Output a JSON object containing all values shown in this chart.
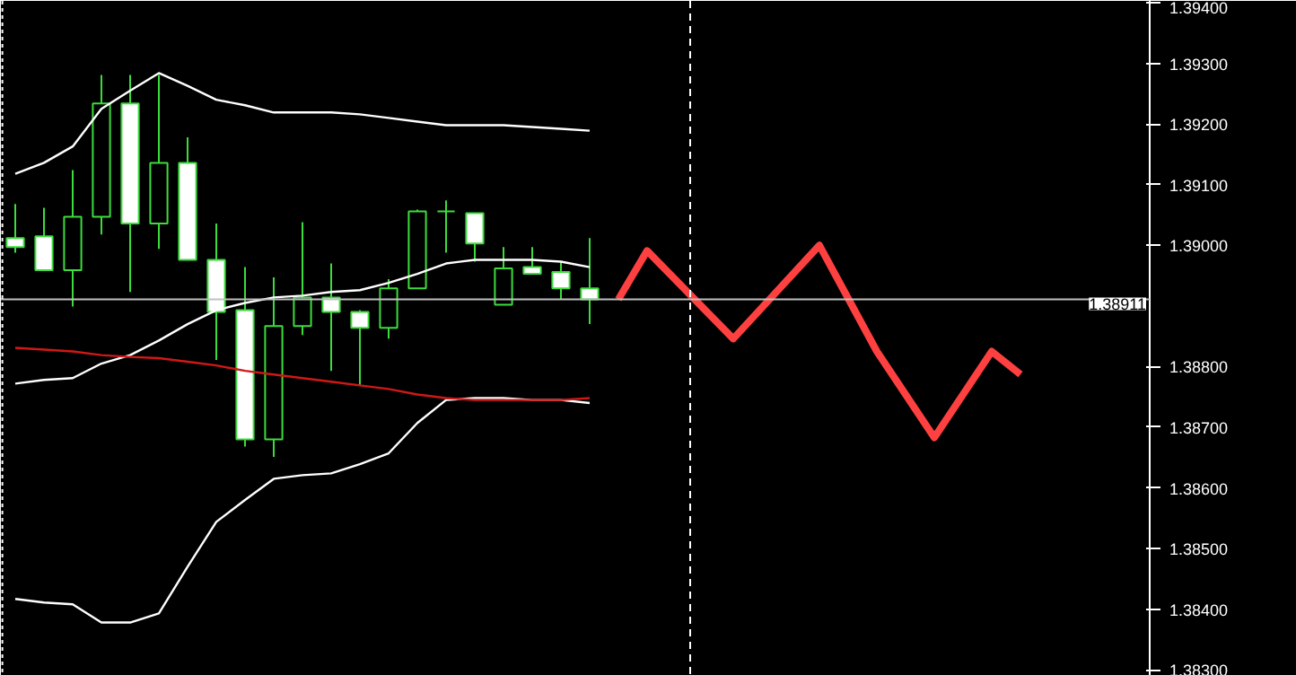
{
  "chart_data": {
    "type": "candlestick",
    "categories": [
      null,
      null,
      null,
      null,
      null,
      null,
      null,
      null,
      null,
      null,
      null,
      null,
      null,
      null,
      null,
      null,
      null,
      null,
      null,
      null,
      null,
      null,
      null,
      null,
      null,
      null,
      null,
      null,
      null,
      null,
      null,
      null,
      null,
      null,
      null,
      null,
      null,
      null,
      null,
      null
    ],
    "series": [
      {
        "type": "line",
        "color": "#ffffff",
        "values": [
          1.39118,
          1.39136,
          1.39163,
          1.39225,
          1.39255,
          1.39284,
          1.39263,
          1.3924,
          1.39231,
          1.39219,
          1.39219,
          1.39219,
          1.39216,
          1.3921,
          1.39204,
          1.39198,
          1.39198,
          1.39198,
          1.39195,
          1.39192,
          1.39189,
          null,
          null,
          null,
          null,
          null,
          null,
          null,
          null,
          null,
          null,
          null,
          null,
          null,
          null,
          null,
          null,
          null,
          null,
          null
        ]
      },
      {
        "type": "line",
        "color": "#ffffff",
        "values": [
          1.38772,
          1.38778,
          1.38781,
          1.38805,
          1.38819,
          1.38843,
          1.3887,
          1.38893,
          1.38905,
          1.38914,
          1.38917,
          1.38923,
          1.38926,
          1.38938,
          1.38953,
          1.3897,
          1.38976,
          1.38976,
          1.38976,
          1.38973,
          1.38964,
          null,
          null,
          null,
          null,
          null,
          null,
          null,
          null,
          null,
          null,
          null,
          null,
          null,
          null,
          null,
          null,
          null,
          null,
          null
        ]
      },
      {
        "type": "line",
        "color": "#ffffff",
        "values": [
          1.38417,
          1.38411,
          1.38408,
          1.38378,
          1.38378,
          1.38393,
          1.3847,
          1.38544,
          1.3858,
          1.38615,
          1.38621,
          1.38624,
          1.38639,
          1.38657,
          1.38707,
          1.38745,
          1.38748,
          1.38748,
          1.38745,
          1.38745,
          1.3874,
          null,
          null,
          null,
          null,
          null,
          null,
          null,
          null,
          null,
          null,
          null,
          null,
          null,
          null,
          null,
          null,
          null,
          null,
          null
        ]
      },
      {
        "type": "line",
        "color": "#d01818",
        "values": [
          1.38831,
          1.38828,
          1.38825,
          1.38819,
          1.38816,
          1.38814,
          1.38808,
          1.38802,
          1.38793,
          1.38787,
          1.38781,
          1.38775,
          1.38769,
          1.38763,
          1.38754,
          1.38748,
          1.38745,
          1.38745,
          1.38745,
          1.38745,
          1.38748,
          null,
          null,
          null,
          null,
          null,
          null,
          null,
          null,
          null,
          null,
          null,
          null,
          null,
          null,
          null,
          null,
          null,
          null,
          null
        ]
      },
      {
        "type": "line",
        "color": "#ff4040",
        "values": [
          null,
          null,
          null,
          null,
          null,
          null,
          null,
          null,
          null,
          null,
          null,
          null,
          null,
          null,
          null,
          null,
          null,
          null,
          null,
          null,
          null,
          1.38911,
          1.38991,
          null,
          null,
          1.38846,
          null,
          null,
          1.39,
          null,
          1.38825,
          null,
          1.38683,
          null,
          1.38825,
          1.38787,
          null,
          null,
          null,
          null
        ]
      },
      {
        "color": "#3cdc3c",
        "ohlc": [
          [
            1.39012,
            1.39068,
            1.38988,
            1.38997
          ],
          [
            1.39015,
            1.39062,
            1.38959,
            1.38959
          ],
          [
            1.38959,
            1.39124,
            1.38899,
            1.39047
          ],
          [
            1.39047,
            1.39281,
            1.39018,
            1.39234
          ],
          [
            1.39234,
            1.39281,
            1.38923,
            1.39036
          ],
          [
            1.39036,
            1.39281,
            1.38994,
            1.39136
          ],
          [
            1.39136,
            1.39178,
            1.38976,
            1.38976
          ],
          [
            1.38976,
            1.39036,
            1.38811,
            1.3889
          ],
          [
            1.38893,
            1.38964,
            1.38668,
            1.3868
          ],
          [
            1.3868,
            1.38947,
            1.38651,
            1.38867
          ],
          [
            1.38867,
            1.39038,
            1.38852,
            1.38914
          ],
          [
            1.38914,
            1.3897,
            1.38793,
            1.3889
          ],
          [
            1.3889,
            1.38893,
            1.38769,
            1.38864
          ],
          [
            1.38864,
            1.38944,
            1.38846,
            1.38929
          ],
          [
            1.38929,
            1.39059,
            1.38929,
            1.39056
          ],
          [
            1.39056,
            1.39074,
            1.38988,
            1.39056
          ],
          [
            1.39053,
            1.39053,
            1.38973,
            1.39003
          ],
          [
            1.38902,
            1.38997,
            1.38902,
            1.38962
          ],
          [
            1.38964,
            1.38997,
            1.38953,
            1.38953
          ],
          [
            1.38956,
            1.38973,
            1.38911,
            1.38929
          ],
          [
            1.38929,
            1.39012,
            1.3887,
            1.38911
          ],
          null,
          null,
          null,
          null,
          null,
          null,
          null,
          null,
          null,
          null,
          null,
          null,
          null,
          null,
          null,
          null,
          null,
          null,
          null
        ]
      }
    ],
    "ylim": [
      1.3829,
      1.39403
    ],
    "yticks": [
      {
        "value": 1.383,
        "label": "1.38300"
      },
      {
        "value": 1.384,
        "label": "1.38400"
      },
      {
        "value": 1.385,
        "label": "1.38500"
      },
      {
        "value": 1.386,
        "label": "1.38600"
      },
      {
        "value": 1.387,
        "label": "1.38700"
      },
      {
        "value": 1.388,
        "label": "1.38800"
      },
      {
        "value": 1.39,
        "label": "1.39000"
      },
      {
        "value": 1.391,
        "label": "1.39100"
      },
      {
        "value": 1.392,
        "label": "1.39200"
      },
      {
        "value": 1.393,
        "label": "1.39300"
      },
      {
        "value": 1.394,
        "label": "1.39400"
      }
    ],
    "tick_labels": "y",
    "ref_lines": [
      {
        "axis": "y",
        "value": 1.38911,
        "label": "1.38911",
        "color": "#c0c0c0",
        "line_style": "solid"
      }
    ],
    "grid": false
  }
}
